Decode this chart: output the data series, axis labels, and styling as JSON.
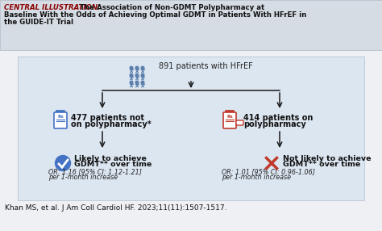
{
  "title_bold": "CENTRAL ILLUSTRATION:",
  "title_line1_rest": " The Association of Non-GDMT Polypharmacy at",
  "title_line2": "Baseline With the Odds of Achieving Optimal GDMT in Patients With HFrEF in",
  "title_line3": "the GUIDE-IT Trial",
  "header_bg": "#d6dce4",
  "header_text_color": "#8b0000",
  "flow_bg": "#dce6f1",
  "outer_bg": "#eef0f4",
  "top_node": "891 patients with HFrEF",
  "left_node_line1": "477 patients not",
  "left_node_line2": "on polypharmacy*",
  "right_node_line1": "414 patients on",
  "right_node_line2": "polypharmacy",
  "left_result_line1": "Likely to achieve",
  "left_result_line2": "GDMT** over time",
  "left_result_line3": "OR: 1.16 [95% CI: 1.12-1.21]",
  "left_result_line4": "per 1-month increase",
  "right_result_line1": "Not likely to achieve",
  "right_result_line2": "GDMT** over time",
  "right_result_line3": "OR: 1.01 [95% CI: 0.96-1.06]",
  "right_result_line4": "per 1-month increase",
  "citation": "Khan MS, et al. J Am Coll Cardiol HF. 2023;11(11):1507-1517.",
  "blue_color": "#4472c4",
  "red_color": "#c0392b",
  "arrow_color": "#1a1a1a",
  "people_color": "#5b7fad",
  "header_border_color": "#b0b8c8"
}
